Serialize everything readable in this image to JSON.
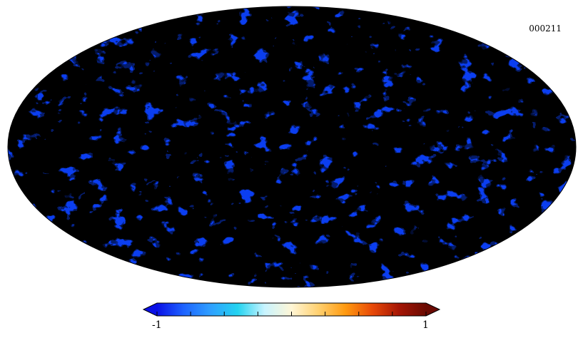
{
  "map_id": "000211",
  "projection": "mollweide",
  "colorbar": {
    "min_label": "-1",
    "max_label": "1",
    "range": [
      -1,
      1
    ],
    "colors": [
      "#0a10e6",
      "#1e64ff",
      "#2fa0ff",
      "#23d3f0",
      "#c8f4ff",
      "#fff6d6",
      "#ffd070",
      "#ff9a10",
      "#e84a08",
      "#a51505",
      "#6a0a02"
    ],
    "under_color": "#0a10e6",
    "over_color": "#6a0a02",
    "tick_count": 9
  },
  "field_colors": {
    "low": "#0b3ef0",
    "high": "#821006"
  }
}
